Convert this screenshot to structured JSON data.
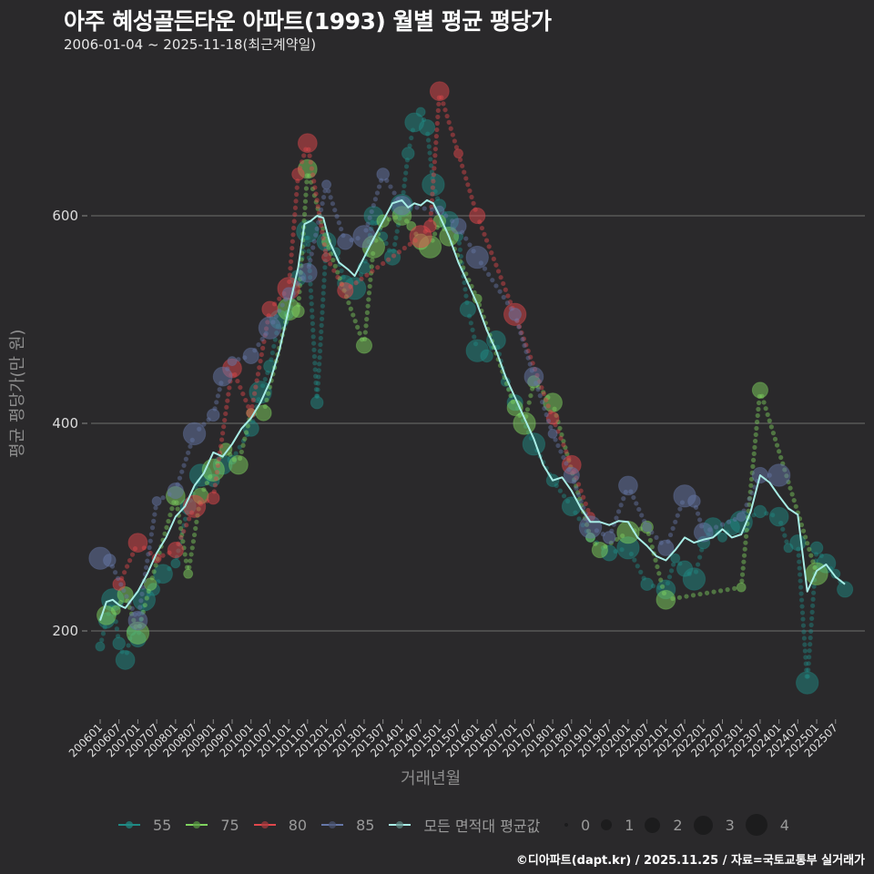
{
  "header": {
    "title": "아주 혜성골든타운 아파트(1993) 월별 평균 평당가",
    "subtitle": "2006-01-04 ~ 2025-11-18(최근계약일)"
  },
  "axes": {
    "ylabel": "평균 평당가(만 원)",
    "xlabel": "거래년월"
  },
  "legend": {
    "series": [
      {
        "label": "55",
        "color": "#1f8a84"
      },
      {
        "label": "75",
        "color": "#7fd35f"
      },
      {
        "label": "80",
        "color": "#e0474c"
      },
      {
        "label": "85",
        "color": "#6677a8"
      },
      {
        "label": "모든 면적대 평균값",
        "color": "#a8ede6"
      }
    ],
    "sizes": [
      {
        "label": "0",
        "d": 4
      },
      {
        "label": "1",
        "d": 12
      },
      {
        "label": "2",
        "d": 17
      },
      {
        "label": "3",
        "d": 21
      },
      {
        "label": "4",
        "d": 24
      }
    ]
  },
  "footer": "©디아파트(dapt.kr) / 2025.11.25 / 자료=국토교통부 실거래가",
  "chart_data": {
    "type": "scatter",
    "title": "아주 혜성골든타운 아파트(1993) 월별 평균 평당가",
    "subtitle": "2006-01-04 ~ 2025-11-18(최근계약일)",
    "xlabel": "거래년월",
    "ylabel": "평균 평당가(만 원)",
    "ylim": [
      120,
      730
    ],
    "yticks": [
      200,
      400,
      600
    ],
    "grid": true,
    "legend_position": "bottom",
    "categories": [
      "200601",
      "200607",
      "200701",
      "200707",
      "200801",
      "200807",
      "200901",
      "200907",
      "201001",
      "201007",
      "201101",
      "201107",
      "201201",
      "201207",
      "201301",
      "201307",
      "201401",
      "201407",
      "201501",
      "201507",
      "201601",
      "201607",
      "201701",
      "201707",
      "201801",
      "201807",
      "201901",
      "201907",
      "202001",
      "202007",
      "202101",
      "202107",
      "202201",
      "202207",
      "202301",
      "202307",
      "202401",
      "202407",
      "202501",
      "202507"
    ],
    "series": [
      {
        "name": "55",
        "color": "#1f8a84",
        "points": [
          [
            "200601",
            185
          ],
          [
            "200603",
            210
          ],
          [
            "200605",
            230
          ],
          [
            "200607",
            188
          ],
          [
            "200609",
            172
          ],
          [
            "200611",
            200
          ],
          [
            "200701",
            192
          ],
          [
            "200703",
            230
          ],
          [
            "200706",
            240
          ],
          [
            "200709",
            255
          ],
          [
            "200801",
            265
          ],
          [
            "200805",
            320
          ],
          [
            "200809",
            350
          ],
          [
            "200901",
            345
          ],
          [
            "200904",
            360
          ],
          [
            "200907",
            365
          ],
          [
            "201001",
            395
          ],
          [
            "201004",
            430
          ],
          [
            "201007",
            455
          ],
          [
            "201010",
            500
          ],
          [
            "201101",
            505
          ],
          [
            "201104",
            540
          ],
          [
            "201107",
            585
          ],
          [
            "201110",
            420
          ],
          [
            "201201",
            575
          ],
          [
            "201204",
            565
          ],
          [
            "201207",
            535
          ],
          [
            "201210",
            530
          ],
          [
            "201301",
            550
          ],
          [
            "201304",
            600
          ],
          [
            "201307",
            580
          ],
          [
            "201310",
            560
          ],
          [
            "201401",
            610
          ],
          [
            "201403",
            660
          ],
          [
            "201405",
            690
          ],
          [
            "201407",
            700
          ],
          [
            "201409",
            685
          ],
          [
            "201411",
            630
          ],
          [
            "201501",
            610
          ],
          [
            "201504",
            595
          ],
          [
            "201507",
            580
          ],
          [
            "201510",
            510
          ],
          [
            "201601",
            470
          ],
          [
            "201604",
            465
          ],
          [
            "201607",
            480
          ],
          [
            "201610",
            440
          ],
          [
            "201701",
            420
          ],
          [
            "201707",
            380
          ],
          [
            "201801",
            345
          ],
          [
            "201807",
            320
          ],
          [
            "201901",
            290
          ],
          [
            "201907",
            275
          ],
          [
            "202001",
            280
          ],
          [
            "202007",
            245
          ],
          [
            "202101",
            240
          ],
          [
            "202104",
            270
          ],
          [
            "202107",
            260
          ],
          [
            "202110",
            250
          ],
          [
            "202201",
            285
          ],
          [
            "202204",
            300
          ],
          [
            "202207",
            290
          ],
          [
            "202210",
            300
          ],
          [
            "202301",
            305
          ],
          [
            "202307",
            315
          ],
          [
            "202401",
            310
          ],
          [
            "202404",
            280
          ],
          [
            "202407",
            285
          ],
          [
            "202410",
            150
          ],
          [
            "202501",
            280
          ],
          [
            "202504",
            265
          ],
          [
            "202507",
            255
          ],
          [
            "202510",
            240
          ]
        ]
      },
      {
        "name": "75",
        "color": "#7fd35f",
        "points": [
          [
            "200603",
            215
          ],
          [
            "200606",
            220
          ],
          [
            "200609",
            235
          ],
          [
            "200701",
            198
          ],
          [
            "200705",
            245
          ],
          [
            "200801",
            330
          ],
          [
            "200805",
            255
          ],
          [
            "200809",
            330
          ],
          [
            "200901",
            355
          ],
          [
            "200905",
            375
          ],
          [
            "200909",
            360
          ],
          [
            "201001",
            410
          ],
          [
            "201005",
            410
          ],
          [
            "201101",
            510
          ],
          [
            "201104",
            508
          ],
          [
            "201107",
            645
          ],
          [
            "201201",
            575
          ],
          [
            "201301",
            475
          ],
          [
            "201304",
            570
          ],
          [
            "201307",
            595
          ],
          [
            "201401",
            600
          ],
          [
            "201404",
            590
          ],
          [
            "201407",
            575
          ],
          [
            "201410",
            570
          ],
          [
            "201501",
            595
          ],
          [
            "201504",
            580
          ],
          [
            "201601",
            520
          ],
          [
            "201701",
            415
          ],
          [
            "201704",
            400
          ],
          [
            "201707",
            440
          ],
          [
            "201801",
            420
          ],
          [
            "201901",
            290
          ],
          [
            "201904",
            278
          ],
          [
            "202001",
            295
          ],
          [
            "202007",
            300
          ],
          [
            "202101",
            230
          ],
          [
            "202301",
            242
          ],
          [
            "202307",
            432
          ],
          [
            "202501",
            255
          ]
        ]
      },
      {
        "name": "80",
        "color": "#e0474c",
        "points": [
          [
            "200607",
            245
          ],
          [
            "200701",
            285
          ],
          [
            "200707",
            270
          ],
          [
            "200801",
            278
          ],
          [
            "200807",
            320
          ],
          [
            "200901",
            328
          ],
          [
            "200907",
            453
          ],
          [
            "201001",
            410
          ],
          [
            "201007",
            510
          ],
          [
            "201101",
            530
          ],
          [
            "201104",
            640
          ],
          [
            "201107",
            670
          ],
          [
            "201201",
            560
          ],
          [
            "201207",
            528
          ],
          [
            "201407",
            580
          ],
          [
            "201410",
            590
          ],
          [
            "201501",
            720
          ],
          [
            "201507",
            660
          ],
          [
            "201601",
            600
          ],
          [
            "201701",
            505
          ],
          [
            "201801",
            405
          ],
          [
            "201807",
            360
          ],
          [
            "201901",
            310
          ]
        ]
      },
      {
        "name": "85",
        "color": "#6677a8",
        "points": [
          [
            "200601",
            270
          ],
          [
            "200604",
            268
          ],
          [
            "200701",
            210
          ],
          [
            "200707",
            325
          ],
          [
            "200801",
            335
          ],
          [
            "200807",
            390
          ],
          [
            "200901",
            408
          ],
          [
            "200904",
            445
          ],
          [
            "200907",
            460
          ],
          [
            "201001",
            465
          ],
          [
            "201007",
            492
          ],
          [
            "201101",
            525
          ],
          [
            "201107",
            545
          ],
          [
            "201201",
            630
          ],
          [
            "201207",
            575
          ],
          [
            "201301",
            580
          ],
          [
            "201307",
            640
          ],
          [
            "201401",
            610
          ],
          [
            "201501",
            605
          ],
          [
            "201507",
            590
          ],
          [
            "201601",
            560
          ],
          [
            "201701",
            505
          ],
          [
            "201707",
            445
          ],
          [
            "201801",
            390
          ],
          [
            "201807",
            350
          ],
          [
            "201901",
            300
          ],
          [
            "201907",
            290
          ],
          [
            "202001",
            340
          ],
          [
            "202007",
            300
          ],
          [
            "202101",
            280
          ],
          [
            "202107",
            330
          ],
          [
            "202110",
            325
          ],
          [
            "202201",
            295
          ],
          [
            "202301",
            310
          ],
          [
            "202307",
            350
          ],
          [
            "202401",
            350
          ]
        ]
      },
      {
        "name": "모든 면적대 평균값",
        "color": "#a8ede6",
        "line": [
          [
            "200601",
            210
          ],
          [
            "200603",
            228
          ],
          [
            "200605",
            230
          ],
          [
            "200607",
            225
          ],
          [
            "200609",
            222
          ],
          [
            "200611",
            230
          ],
          [
            "200701",
            238
          ],
          [
            "200704",
            255
          ],
          [
            "200707",
            275
          ],
          [
            "200710",
            290
          ],
          [
            "200801",
            310
          ],
          [
            "200804",
            320
          ],
          [
            "200807",
            340
          ],
          [
            "200810",
            352
          ],
          [
            "200901",
            372
          ],
          [
            "200904",
            368
          ],
          [
            "200907",
            380
          ],
          [
            "200910",
            395
          ],
          [
            "201001",
            405
          ],
          [
            "201004",
            420
          ],
          [
            "201007",
            440
          ],
          [
            "201010",
            470
          ],
          [
            "201101",
            510
          ],
          [
            "201104",
            550
          ],
          [
            "201106",
            592
          ],
          [
            "201108",
            595
          ],
          [
            "201110",
            600
          ],
          [
            "201112",
            598
          ],
          [
            "201202",
            575
          ],
          [
            "201205",
            555
          ],
          [
            "201208",
            548
          ],
          [
            "201210",
            542
          ],
          [
            "201301",
            560
          ],
          [
            "201304",
            578
          ],
          [
            "201307",
            595
          ],
          [
            "201310",
            612
          ],
          [
            "201401",
            615
          ],
          [
            "201403",
            608
          ],
          [
            "201405",
            612
          ],
          [
            "201407",
            610
          ],
          [
            "201409",
            615
          ],
          [
            "201411",
            612
          ],
          [
            "201501",
            600
          ],
          [
            "201504",
            580
          ],
          [
            "201507",
            555
          ],
          [
            "201510",
            535
          ],
          [
            "201601",
            515
          ],
          [
            "201604",
            490
          ],
          [
            "201607",
            470
          ],
          [
            "201610",
            445
          ],
          [
            "201701",
            425
          ],
          [
            "201704",
            405
          ],
          [
            "201707",
            385
          ],
          [
            "201710",
            360
          ],
          [
            "201801",
            345
          ],
          [
            "201804",
            348
          ],
          [
            "201807",
            335
          ],
          [
            "201810",
            318
          ],
          [
            "201901",
            305
          ],
          [
            "201904",
            305
          ],
          [
            "201907",
            302
          ],
          [
            "201910",
            306
          ],
          [
            "202001",
            305
          ],
          [
            "202004",
            290
          ],
          [
            "202007",
            282
          ],
          [
            "202010",
            272
          ],
          [
            "202101",
            268
          ],
          [
            "202104",
            278
          ],
          [
            "202107",
            290
          ],
          [
            "202110",
            285
          ],
          [
            "202201",
            288
          ],
          [
            "202204",
            290
          ],
          [
            "202207",
            298
          ],
          [
            "202210",
            290
          ],
          [
            "202301",
            293
          ],
          [
            "202304",
            315
          ],
          [
            "202307",
            350
          ],
          [
            "202310",
            343
          ],
          [
            "202401",
            330
          ],
          [
            "202404",
            318
          ],
          [
            "202407",
            312
          ],
          [
            "202410",
            238
          ],
          [
            "202501",
            258
          ],
          [
            "202504",
            264
          ],
          [
            "202507",
            252
          ],
          [
            "202510",
            245
          ]
        ]
      }
    ]
  }
}
